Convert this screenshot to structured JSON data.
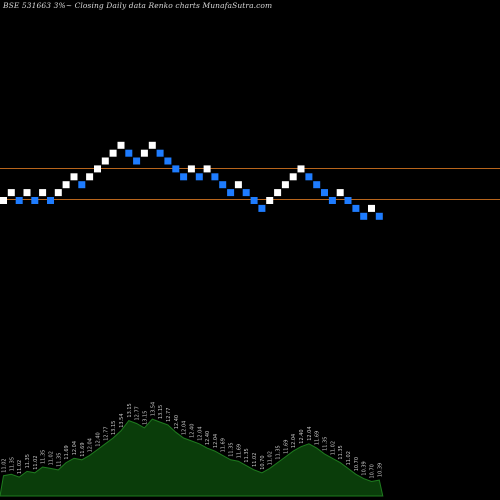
{
  "header": {
    "title": "BSE 531663 3%~  Closing Daily data  Renko  charts MunafaSutra.com"
  },
  "colors": {
    "background": "#000000",
    "up_brick": "#ffffff",
    "down_brick": "#1e7cff",
    "level_line": "#b8651c",
    "volume_fill": "#0a3d0a",
    "volume_outline": "#1e7a1e",
    "volume_label": "#c8c8c8"
  },
  "chart_data": {
    "type": "renko",
    "brick_size_percent": 3,
    "title": "BSE 531663 3%~  Closing Daily data  Renko  charts MunafaSutra.com",
    "horizontal_levels": [
      12.45,
      11.1
    ],
    "bricks": [
      {
        "dir": "up",
        "value": 11.02
      },
      {
        "dir": "up",
        "value": 11.35
      },
      {
        "dir": "down",
        "value": 11.02
      },
      {
        "dir": "up",
        "value": 11.35
      },
      {
        "dir": "down",
        "value": 11.02
      },
      {
        "dir": "up",
        "value": 11.35
      },
      {
        "dir": "down",
        "value": 11.02
      },
      {
        "dir": "up",
        "value": 11.35
      },
      {
        "dir": "up",
        "value": 11.69
      },
      {
        "dir": "up",
        "value": 12.04
      },
      {
        "dir": "down",
        "value": 11.69
      },
      {
        "dir": "up",
        "value": 12.04
      },
      {
        "dir": "up",
        "value": 12.4
      },
      {
        "dir": "up",
        "value": 12.77
      },
      {
        "dir": "up",
        "value": 13.15
      },
      {
        "dir": "up",
        "value": 13.54
      },
      {
        "dir": "down",
        "value": 13.15
      },
      {
        "dir": "down",
        "value": 12.77
      },
      {
        "dir": "up",
        "value": 13.15
      },
      {
        "dir": "up",
        "value": 13.54
      },
      {
        "dir": "down",
        "value": 13.15
      },
      {
        "dir": "down",
        "value": 12.77
      },
      {
        "dir": "down",
        "value": 12.4
      },
      {
        "dir": "down",
        "value": 12.04
      },
      {
        "dir": "up",
        "value": 12.4
      },
      {
        "dir": "down",
        "value": 12.04
      },
      {
        "dir": "up",
        "value": 12.4
      },
      {
        "dir": "down",
        "value": 12.04
      },
      {
        "dir": "down",
        "value": 11.69
      },
      {
        "dir": "down",
        "value": 11.35
      },
      {
        "dir": "up",
        "value": 11.69
      },
      {
        "dir": "down",
        "value": 11.35
      },
      {
        "dir": "down",
        "value": 11.02
      },
      {
        "dir": "down",
        "value": 10.7
      },
      {
        "dir": "up",
        "value": 11.02
      },
      {
        "dir": "up",
        "value": 11.35
      },
      {
        "dir": "up",
        "value": 11.69
      },
      {
        "dir": "up",
        "value": 12.04
      },
      {
        "dir": "up",
        "value": 12.4
      },
      {
        "dir": "down",
        "value": 12.04
      },
      {
        "dir": "down",
        "value": 11.69
      },
      {
        "dir": "down",
        "value": 11.35
      },
      {
        "dir": "down",
        "value": 11.02
      },
      {
        "dir": "up",
        "value": 11.35
      },
      {
        "dir": "down",
        "value": 11.02
      },
      {
        "dir": "down",
        "value": 10.7
      },
      {
        "dir": "down",
        "value": 10.39
      },
      {
        "dir": "up",
        "value": 10.7
      },
      {
        "dir": "down",
        "value": 10.39
      }
    ],
    "volume_profile": [
      14,
      15,
      13,
      17,
      16,
      20,
      19,
      18,
      23,
      26,
      25,
      28,
      32,
      36,
      40,
      45,
      52,
      50,
      47,
      53,
      51,
      49,
      44,
      40,
      38,
      36,
      33,
      31,
      28,
      25,
      24,
      21,
      18,
      16,
      19,
      23,
      27,
      31,
      34,
      36,
      33,
      29,
      26,
      23,
      19,
      15,
      12,
      10,
      11
    ]
  }
}
